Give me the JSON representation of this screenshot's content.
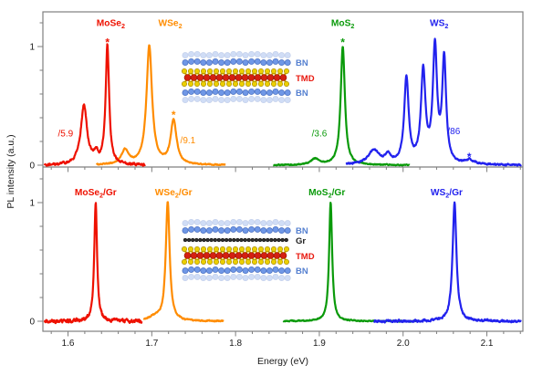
{
  "figure": {
    "background": "#ffffff",
    "axis_color": "#7f7f7f",
    "tick_label_color": "#1a1a1a",
    "xlabel": "Energy (eV)",
    "ylabel": "PL intensity (a.u.)",
    "x_range": [
      1.57,
      2.143
    ],
    "x_major_ticks": [
      1.6,
      1.7,
      1.8,
      1.9,
      2.0,
      2.1
    ],
    "x_major_tick_labels": [
      "1.6",
      "1.7",
      "1.8",
      "1.9",
      "2.0",
      "2.1"
    ],
    "x_minor_tick_step": 0.02,
    "y_major_ticks": [
      0,
      1
    ],
    "y_major_tick_labels": [
      "0",
      "1"
    ],
    "y_minor_tick_step": 0.2
  },
  "chart_data": [
    {
      "panel": "top",
      "type": "line",
      "xlabel": "Energy (eV)",
      "ylabel": "PL intensity (a.u.)",
      "ylim": [
        -0.015,
        1.29
      ],
      "series": [
        {
          "name": "WSe2",
          "color": "#ff8c00",
          "x_span": [
            1.634,
            1.788
          ],
          "noise": 0.004,
          "peaks": [
            {
              "center": 1.668,
              "height": 0.12,
              "hwhm": 0.005
            },
            {
              "center": 1.697,
              "height": 1.0,
              "hwhm": 0.004
            },
            {
              "center": 1.726,
              "height": 0.37,
              "hwhm": 0.0042
            }
          ],
          "label": {
            "pre": "WSe",
            "sub": "2",
            "post": "",
            "x": 1.722,
            "y": 1.2
          },
          "scale_label": {
            "text": "/9.1",
            "x": 1.734,
            "y": 0.21
          },
          "star": {
            "x": 1.726,
            "y": 0.44
          }
        },
        {
          "name": "MoSe2",
          "color": "#ee1100",
          "x_span": [
            1.572,
            1.692
          ],
          "noise": 0.009,
          "peaks": [
            {
              "center": 1.619,
              "height": 0.5,
              "hwhm": 0.0045
            },
            {
              "center": 1.6335,
              "height": 0.07,
              "hwhm": 0.003
            },
            {
              "center": 1.647,
              "height": 1.0,
              "hwhm": 0.0025
            }
          ],
          "label": {
            "pre": "MoSe",
            "sub": "2",
            "post": "",
            "x": 1.651,
            "y": 1.2
          },
          "scale_label": {
            "text": "/5.9",
            "x": 1.588,
            "y": 0.27
          },
          "star": {
            "x": 1.647,
            "y": 1.05
          }
        },
        {
          "name": "MoS2",
          "color": "#0a9a0a",
          "x_span": [
            1.845,
            2.008
          ],
          "noise": 0.004,
          "peaks": [
            {
              "center": 1.895,
              "height": 0.05,
              "hwhm": 0.006
            },
            {
              "center": 1.928,
              "height": 1.0,
              "hwhm": 0.003
            }
          ],
          "label": {
            "pre": "MoS",
            "sub": "2",
            "post": "",
            "x": 1.928,
            "y": 1.2
          },
          "scale_label": {
            "text": "/3.6",
            "x": 1.891,
            "y": 0.27
          },
          "star": {
            "x": 1.928,
            "y": 1.05
          }
        },
        {
          "name": "WS2",
          "color": "#2222ee",
          "x_span": [
            1.932,
            2.141
          ],
          "noise": 0.006,
          "peaks": [
            {
              "center": 1.965,
              "height": 0.12,
              "hwhm": 0.008
            },
            {
              "center": 1.982,
              "height": 0.07,
              "hwhm": 0.004
            },
            {
              "center": 2.004,
              "height": 0.72,
              "hwhm": 0.0032
            },
            {
              "center": 2.024,
              "height": 0.77,
              "hwhm": 0.0032
            },
            {
              "center": 2.038,
              "height": 0.97,
              "hwhm": 0.003
            },
            {
              "center": 2.049,
              "height": 0.87,
              "hwhm": 0.0028
            },
            {
              "center": 2.079,
              "height": 0.035,
              "hwhm": 0.006
            }
          ],
          "label": {
            "pre": "WS",
            "sub": "2",
            "post": "",
            "x": 2.043,
            "y": 1.2
          },
          "scale_label": {
            "text": "/86",
            "x": 2.053,
            "y": 0.29
          },
          "star": {
            "x": 2.079,
            "y": 0.085
          }
        }
      ]
    },
    {
      "panel": "bottom",
      "type": "line",
      "xlabel": "Energy (eV)",
      "ylabel": "PL intensity (a.u.)",
      "ylim": [
        -0.085,
        1.3
      ],
      "series": [
        {
          "name": "WSe2/Gr",
          "color": "#ff8c00",
          "x_span": [
            1.69,
            1.786
          ],
          "noise": 0.005,
          "peaks": [
            {
              "center": 1.703,
              "height": 0.03,
              "hwhm": 0.008
            },
            {
              "center": 1.719,
              "height": 1.0,
              "hwhm": 0.0028
            }
          ],
          "label": {
            "pre": "WSe",
            "sub": "2",
            "post": "/Gr",
            "x": 1.726,
            "y": 1.09
          }
        },
        {
          "name": "MoSe2/Gr",
          "color": "#ee1100",
          "x_span": [
            1.572,
            1.688
          ],
          "noise": 0.013,
          "peaks": [
            {
              "center": 1.633,
              "height": 1.0,
              "hwhm": 0.002
            }
          ],
          "label": {
            "pre": "MoSe",
            "sub": "2",
            "post": "/Gr",
            "x": 1.633,
            "y": 1.09
          }
        },
        {
          "name": "MoS2/Gr",
          "color": "#0a9a0a",
          "x_span": [
            1.857,
            2.022
          ],
          "noise": 0.004,
          "peaks": [
            {
              "center": 1.9135,
              "height": 1.0,
              "hwhm": 0.0022
            }
          ],
          "label": {
            "pre": "MoS",
            "sub": "2",
            "post": "/Gr",
            "x": 1.909,
            "y": 1.09
          }
        },
        {
          "name": "WS2/Gr",
          "color": "#2222ee",
          "x_span": [
            1.965,
            2.141
          ],
          "noise": 0.008,
          "peaks": [
            {
              "center": 2.0614,
              "height": 1.0,
              "hwhm": 0.0028
            }
          ],
          "label": {
            "pre": "WS",
            "sub": "2",
            "post": "/Gr",
            "x": 2.052,
            "y": 1.09
          }
        }
      ]
    }
  ],
  "insets": {
    "top": {
      "layers": [
        {
          "type": "bn",
          "label": "BN",
          "label_color": "#5580d0"
        },
        {
          "type": "tmd",
          "label": "TMD",
          "label_color": "#e8190f"
        },
        {
          "type": "bn_flip",
          "label": "BN",
          "label_color": "#5580d0"
        }
      ]
    },
    "bottom": {
      "layers": [
        {
          "type": "bn",
          "label": "BN",
          "label_color": "#5580d0"
        },
        {
          "type": "gr",
          "label": "Gr",
          "label_color": "#222222"
        },
        {
          "type": "tmd",
          "label": "TMD",
          "label_color": "#e8190f"
        },
        {
          "type": "bn_flip",
          "label": "BN",
          "label_color": "#5580d0"
        }
      ]
    },
    "atom_colors": {
      "bn_fill": "#6f97e6",
      "bn_stroke": "#466dc0",
      "gr_fill": "#303030",
      "gr_stroke": "#000000",
      "tmd_chalcogen_fill": "#ecd000",
      "tmd_chalcogen_stroke": "#9a7d00",
      "tmd_metal_fill": "#d42010",
      "tmd_metal_stroke": "#8a0d00",
      "tmd_bond": "#d6b400"
    }
  }
}
